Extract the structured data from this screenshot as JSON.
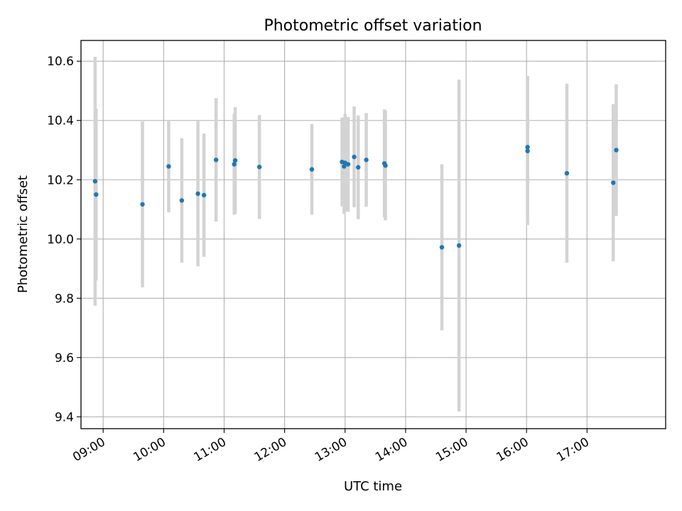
{
  "chart_data": {
    "type": "scatter",
    "title": "Photometric offset variation",
    "xlabel": "UTC time",
    "ylabel": "Photometric offset",
    "xlim": [
      "08:38",
      "18:18"
    ],
    "ylim": [
      9.36,
      10.67
    ],
    "grid": true,
    "x_ticks": [
      "09:00",
      "10:00",
      "11:00",
      "12:00",
      "13:00",
      "14:00",
      "15:00",
      "16:00",
      "17:00"
    ],
    "y_ticks": [
      9.4,
      9.6,
      9.8,
      10.0,
      10.2,
      10.4,
      10.6
    ],
    "point_color": "#1f77b4",
    "errorbar_color": "#d3d3d3",
    "points": [
      {
        "x": "08:52",
        "y": 10.195,
        "err": 0.42
      },
      {
        "x": "08:53",
        "y": 10.15,
        "err": 0.29
      },
      {
        "x": "09:39",
        "y": 10.117,
        "err": 0.28
      },
      {
        "x": "10:05",
        "y": 10.245,
        "err": 0.155
      },
      {
        "x": "10:18",
        "y": 10.13,
        "err": 0.21
      },
      {
        "x": "10:34",
        "y": 10.153,
        "err": 0.245
      },
      {
        "x": "10:40",
        "y": 10.148,
        "err": 0.208
      },
      {
        "x": "10:52",
        "y": 10.267,
        "err": 0.208
      },
      {
        "x": "11:10",
        "y": 10.252,
        "err": 0.17
      },
      {
        "x": "11:11",
        "y": 10.265,
        "err": 0.18
      },
      {
        "x": "11:35",
        "y": 10.243,
        "err": 0.175
      },
      {
        "x": "12:27",
        "y": 10.235,
        "err": 0.153
      },
      {
        "x": "12:57",
        "y": 10.26,
        "err": 0.15
      },
      {
        "x": "12:59",
        "y": 10.245,
        "err": 0.16
      },
      {
        "x": "13:00",
        "y": 10.257,
        "err": 0.165
      },
      {
        "x": "13:03",
        "y": 10.252,
        "err": 0.16
      },
      {
        "x": "13:09",
        "y": 10.277,
        "err": 0.17
      },
      {
        "x": "13:13",
        "y": 10.242,
        "err": 0.175
      },
      {
        "x": "13:21",
        "y": 10.267,
        "err": 0.158
      },
      {
        "x": "13:39",
        "y": 10.255,
        "err": 0.182
      },
      {
        "x": "13:40",
        "y": 10.248,
        "err": 0.185
      },
      {
        "x": "14:36",
        "y": 9.972,
        "err": 0.28
      },
      {
        "x": "14:53",
        "y": 9.978,
        "err": 0.56
      },
      {
        "x": "16:01",
        "y": 10.31,
        "err": 0.24
      },
      {
        "x": "16:01",
        "y": 10.297,
        "err": 0.25
      },
      {
        "x": "16:40",
        "y": 10.222,
        "err": 0.302
      },
      {
        "x": "17:26",
        "y": 10.19,
        "err": 0.265
      },
      {
        "x": "17:29",
        "y": 10.3,
        "err": 0.222
      }
    ]
  }
}
